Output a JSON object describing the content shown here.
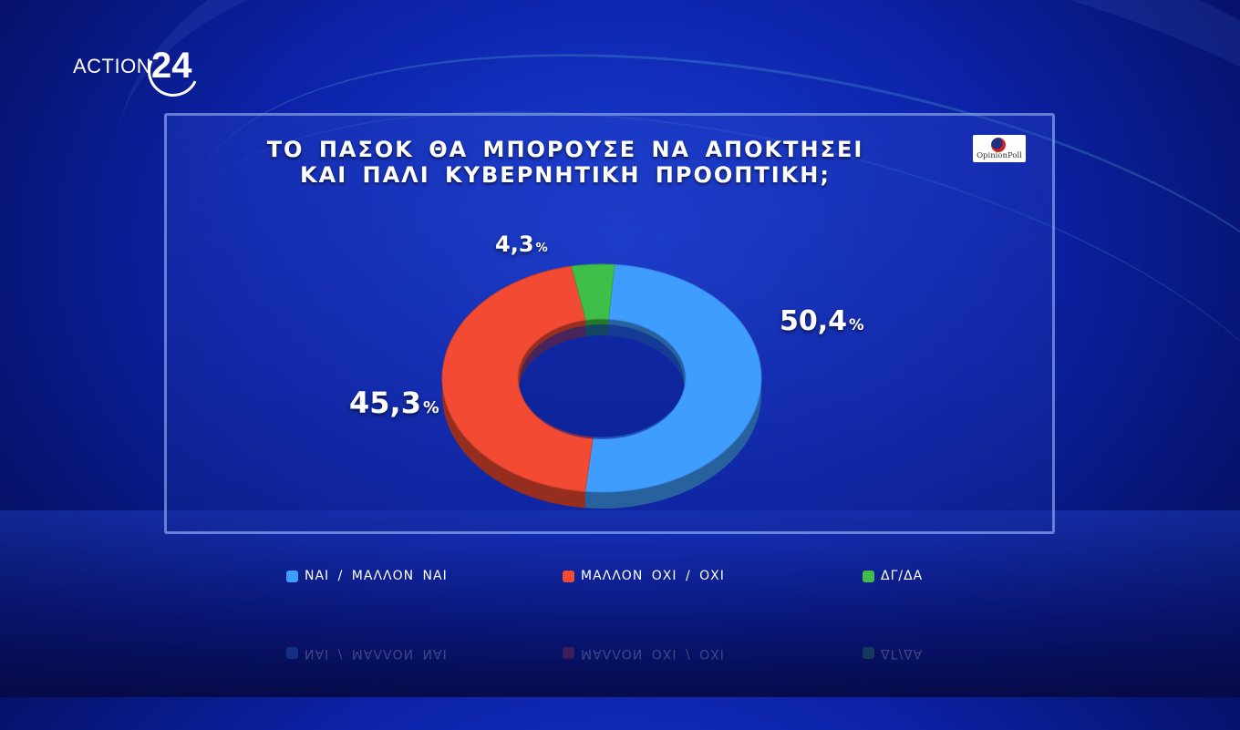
{
  "brand": {
    "logo_text": "ACTION",
    "logo_number": "24"
  },
  "pollster": {
    "name": "OpinionPoll"
  },
  "chart_data": {
    "type": "pie",
    "title_lines": [
      "ΤΟ ΠΑΣΟΚ ΘΑ ΜΠΟΡΟΥΣΕ ΝΑ ΑΠΟΚΤΗΣΕΙ",
      "ΚΑΙ ΠΑΛΙ ΚΥΒΕΡΝΗΤΙΚΗ ΠΡΟΟΠΤΙΚΗ;"
    ],
    "categories": [
      "ΝΑΙ / ΜΑΛΛΟΝ ΝΑΙ",
      "ΜΑΛΛΟΝ ΟΧΙ / ΟΧΙ",
      "ΔΓ/ΔΑ"
    ],
    "values": [
      50.4,
      45.3,
      4.3
    ],
    "value_labels": [
      "50,4",
      "45,3",
      "4,3"
    ],
    "unit": "%",
    "colors": [
      "#3f9dff",
      "#f24a33",
      "#3fbf4a"
    ],
    "style": "donut",
    "legend_position": "bottom"
  }
}
